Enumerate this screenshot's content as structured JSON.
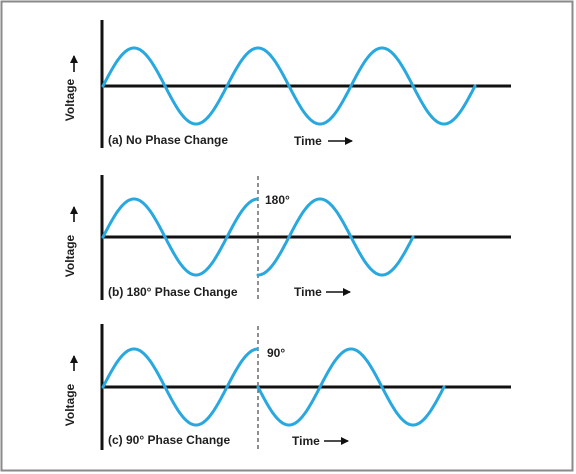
{
  "colors": {
    "frame": "#8a8a8a",
    "axis": "#111111",
    "wave": "#29a8df",
    "text": "#1e1e1e"
  },
  "panels": [
    {
      "id": "a",
      "caption": "(a)  No Phase Change",
      "y_label": "Voltage",
      "time_label": "Time",
      "phase_label": "",
      "phase_shift_deg": 0,
      "cycles": 3
    },
    {
      "id": "b",
      "caption": "(b)  180°  Phase Change",
      "y_label": "Voltage",
      "time_label": "Time",
      "phase_label": "180°",
      "phase_shift_deg": 180,
      "cycles": 2.5
    },
    {
      "id": "c",
      "caption": "(c)  90°  Phase Change",
      "y_label": "Voltage",
      "time_label": "Time",
      "phase_label": "90°",
      "phase_shift_deg": 90,
      "cycles": 2.75
    }
  ]
}
